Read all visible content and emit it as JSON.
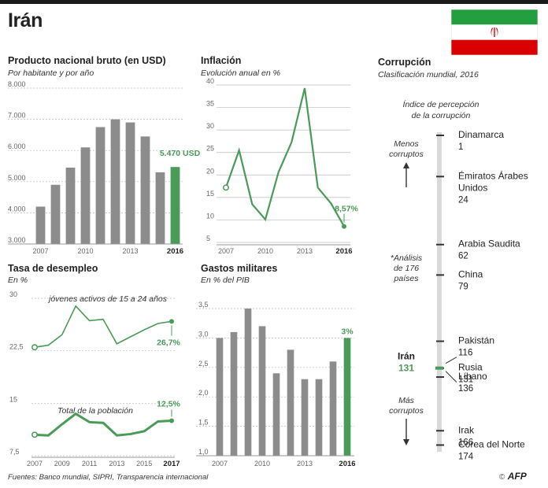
{
  "title": "Irán",
  "colors": {
    "bar": "#8c8c8c",
    "highlight": "#4a9a58",
    "flag_green": "#239f40",
    "flag_red": "#da0000"
  },
  "gnp": {
    "title": "Producto nacional bruto (en USD)",
    "subtitle": "Por habitante y por año",
    "annotation": "5.470 USD",
    "chart_data": {
      "type": "bar",
      "title": "Producto nacional bruto (en USD)",
      "categories": [
        "2007",
        "2008",
        "2009",
        "2010",
        "2011",
        "2012",
        "2013",
        "2014",
        "2015",
        "2016"
      ],
      "values": [
        4200,
        4900,
        5450,
        6100,
        6750,
        7000,
        6900,
        6450,
        5300,
        5470
      ],
      "ylim": [
        3000,
        8000
      ],
      "yticks": [
        "8.000",
        "7.000",
        "6.000",
        "5.000",
        "4.000",
        "3.000"
      ],
      "xtick_labels": [
        "2007",
        "2010",
        "2013",
        "2016"
      ]
    }
  },
  "inflation": {
    "title": "Inflación",
    "subtitle": "Evolución anual en %",
    "annotation": "8,57%",
    "chart_data": {
      "type": "line",
      "title": "Inflación",
      "x": [
        2007,
        2008,
        2009,
        2010,
        2011,
        2012,
        2013,
        2014,
        2015,
        2016
      ],
      "values": [
        17.2,
        25.5,
        13.5,
        10.1,
        20.6,
        27.3,
        39.3,
        17.2,
        13.7,
        8.57
      ],
      "ylim": [
        5,
        40
      ],
      "yticks": [
        "40",
        "35",
        "30",
        "25",
        "20",
        "15",
        "10",
        "5"
      ],
      "xtick_labels": [
        "2007",
        "2010",
        "2013",
        "2016"
      ]
    }
  },
  "unemployment": {
    "title": "Tasa de desempleo",
    "subtitle": "En %",
    "youth_label": "jóvenes  activos de 15 a 24 años",
    "total_label": "Total de la población",
    "youth_annotation": "26,7%",
    "total_annotation": "12,5%",
    "chart_data": {
      "type": "line",
      "title": "Tasa de desempleo",
      "x": [
        2007,
        2008,
        2009,
        2010,
        2011,
        2012,
        2013,
        2014,
        2015,
        2016,
        2017
      ],
      "series": [
        {
          "name": "jóvenes activos de 15 a 24 años",
          "values": [
            23.0,
            23.3,
            24.8,
            28.9,
            26.8,
            27.0,
            23.5,
            24.5,
            25.5,
            26.4,
            26.7
          ]
        },
        {
          "name": "Total de la población",
          "values": [
            10.5,
            10.4,
            12.0,
            13.5,
            12.3,
            12.2,
            10.4,
            10.6,
            11.0,
            12.4,
            12.5
          ]
        }
      ],
      "ylim": [
        7.5,
        30
      ],
      "yticks": [
        "30",
        "22,5",
        "15",
        "7,5"
      ],
      "xtick_labels": [
        "2007",
        "2009",
        "2011",
        "2013",
        "2015",
        "2017"
      ]
    }
  },
  "military": {
    "title": "Gastos militares",
    "subtitle": "En % del PIB",
    "annotation": "3%",
    "chart_data": {
      "type": "bar",
      "title": "Gastos militares",
      "categories": [
        "2007",
        "2008",
        "2009",
        "2010",
        "2011",
        "2012",
        "2013",
        "2014",
        "2015",
        "2016"
      ],
      "values": [
        3.0,
        3.1,
        3.5,
        3.2,
        2.4,
        2.8,
        2.3,
        2.3,
        2.6,
        3.0
      ],
      "ylim": [
        1.0,
        3.5
      ],
      "yticks": [
        "3,5",
        "3,0",
        "2,5",
        "2,0",
        "1,5",
        "1,0"
      ],
      "xtick_labels": [
        "2007",
        "2010",
        "2013",
        "2016"
      ]
    }
  },
  "corruption": {
    "title": "Corrupción",
    "subtitle": "Clasificación mundial, 2016",
    "index_label_1": "Índice de percepción",
    "index_label_2": "de la corrupción",
    "less_1": "Menos",
    "less_2": "corruptos",
    "more_1": "Más",
    "more_2": "corruptos",
    "analysis_1": "*Análisis",
    "analysis_2": "de 176",
    "analysis_3": "países",
    "iran_name": "Irán",
    "iran_rank": "131",
    "chart_data": {
      "type": "table",
      "title": "Corrupción",
      "entries": [
        {
          "lines": [
            "Dinamarca"
          ],
          "rank": "1",
          "value": 1
        },
        {
          "lines": [
            "Émiratos Árabes",
            "Unidos"
          ],
          "rank": "24",
          "value": 24
        },
        {
          "lines": [
            "Arabia Saudita"
          ],
          "rank": "62",
          "value": 62
        },
        {
          "lines": [
            "China"
          ],
          "rank": "79",
          "value": 79
        },
        {
          "lines": [
            "Pakistán"
          ],
          "rank": "116",
          "value": 116
        },
        {
          "lines": [
            "Rusia"
          ],
          "rank": "131",
          "value": 131
        },
        {
          "lines": [
            "Líbano"
          ],
          "rank": "136",
          "value": 136
        },
        {
          "lines": [
            "Irak"
          ],
          "rank": "166",
          "value": 166
        },
        {
          "lines": [
            "Corea del Norte"
          ],
          "rank": "174",
          "value": 174
        }
      ]
    }
  },
  "footer": "Fuentes: Banco mundial, SIPRI, Transparencia internacional",
  "credit": "AFP",
  "copyright": "©"
}
